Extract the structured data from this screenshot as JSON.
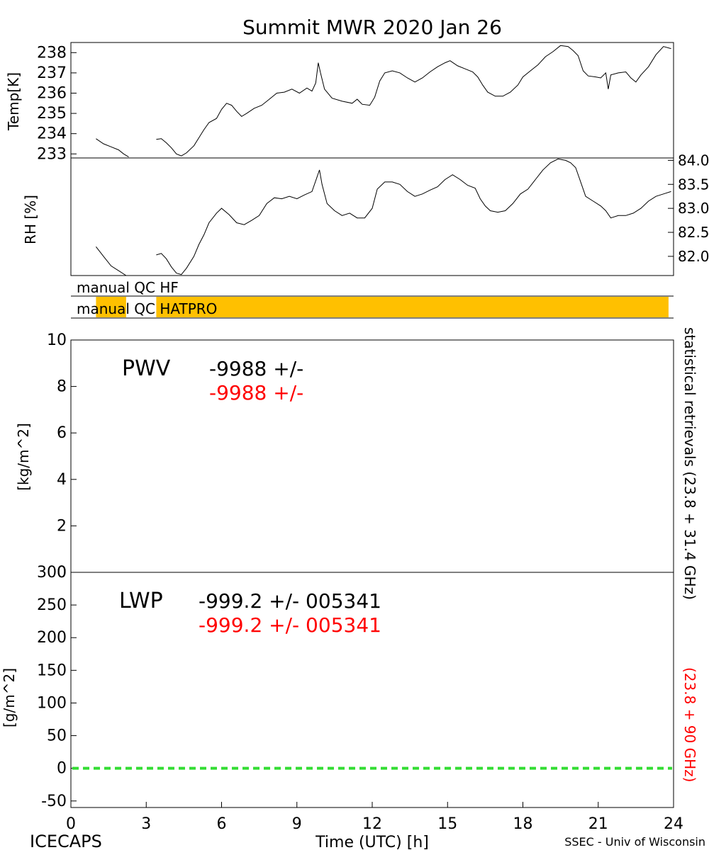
{
  "title": "Summit MWR 2020 Jan 26",
  "footer": {
    "left": "ICECAPS",
    "center": "Time (UTC) [h]",
    "right": "SSEC - Univ of Wisconsin"
  },
  "colors": {
    "black": "#000000",
    "red": "#ff0000",
    "orange": "#ffc000",
    "green": "#33dd33"
  },
  "chart_data": [
    {
      "type": "line",
      "name": "temperature",
      "ylabel": "Temp[K]",
      "ylim": [
        232.8,
        238.5
      ],
      "yticks": [
        "233",
        "234",
        "235",
        "236",
        "237",
        "238"
      ],
      "segments": [
        [
          [
            1.0,
            233.75
          ],
          [
            1.3,
            233.5
          ],
          [
            1.6,
            233.35
          ],
          [
            1.9,
            233.2
          ],
          [
            2.1,
            233.0
          ],
          [
            2.3,
            232.85
          ]
        ],
        [
          [
            3.4,
            233.72
          ],
          [
            3.6,
            233.75
          ],
          [
            3.8,
            233.55
          ],
          [
            4.0,
            233.3
          ],
          [
            4.2,
            233.0
          ],
          [
            4.4,
            232.9
          ],
          [
            4.6,
            233.05
          ],
          [
            4.9,
            233.4
          ],
          [
            5.1,
            233.8
          ],
          [
            5.3,
            234.2
          ],
          [
            5.5,
            234.55
          ],
          [
            5.8,
            234.75
          ],
          [
            6.0,
            235.2
          ],
          [
            6.2,
            235.5
          ],
          [
            6.4,
            235.4
          ],
          [
            6.6,
            235.1
          ],
          [
            6.8,
            234.85
          ],
          [
            7.0,
            235.0
          ],
          [
            7.3,
            235.25
          ],
          [
            7.6,
            235.4
          ],
          [
            7.9,
            235.7
          ],
          [
            8.2,
            236.0
          ],
          [
            8.5,
            236.05
          ],
          [
            8.8,
            236.2
          ],
          [
            9.1,
            236.0
          ],
          [
            9.4,
            236.25
          ],
          [
            9.6,
            236.1
          ],
          [
            9.75,
            236.5
          ],
          [
            9.85,
            237.5
          ],
          [
            9.95,
            236.95
          ],
          [
            10.1,
            236.2
          ],
          [
            10.4,
            235.75
          ],
          [
            10.8,
            235.6
          ],
          [
            11.2,
            235.5
          ],
          [
            11.4,
            235.7
          ],
          [
            11.6,
            235.45
          ],
          [
            11.9,
            235.4
          ],
          [
            12.1,
            235.8
          ],
          [
            12.3,
            236.6
          ],
          [
            12.5,
            237.0
          ],
          [
            12.8,
            237.1
          ],
          [
            13.1,
            237.0
          ],
          [
            13.4,
            236.75
          ],
          [
            13.7,
            236.55
          ],
          [
            14.0,
            236.75
          ],
          [
            14.3,
            237.05
          ],
          [
            14.6,
            237.3
          ],
          [
            14.9,
            237.5
          ],
          [
            15.1,
            237.6
          ],
          [
            15.4,
            237.35
          ],
          [
            15.7,
            237.2
          ],
          [
            16.0,
            237.05
          ],
          [
            16.2,
            236.8
          ],
          [
            16.4,
            236.4
          ],
          [
            16.6,
            236.05
          ],
          [
            16.9,
            235.85
          ],
          [
            17.2,
            235.85
          ],
          [
            17.5,
            236.05
          ],
          [
            17.8,
            236.4
          ],
          [
            18.0,
            236.8
          ],
          [
            18.3,
            237.1
          ],
          [
            18.6,
            237.4
          ],
          [
            18.9,
            237.8
          ],
          [
            19.2,
            238.05
          ],
          [
            19.5,
            238.35
          ],
          [
            19.8,
            238.3
          ],
          [
            20.0,
            238.1
          ],
          [
            20.2,
            237.85
          ],
          [
            20.4,
            237.1
          ],
          [
            20.6,
            236.85
          ],
          [
            20.9,
            236.8
          ],
          [
            21.1,
            236.75
          ],
          [
            21.3,
            237.0
          ],
          [
            21.4,
            236.2
          ],
          [
            21.5,
            236.9
          ],
          [
            21.8,
            237.0
          ],
          [
            22.1,
            237.05
          ],
          [
            22.3,
            236.75
          ],
          [
            22.5,
            236.55
          ],
          [
            22.7,
            236.9
          ],
          [
            23.0,
            237.3
          ],
          [
            23.3,
            237.9
          ],
          [
            23.6,
            238.3
          ],
          [
            23.9,
            238.2
          ]
        ]
      ]
    },
    {
      "type": "line",
      "name": "relative-humidity",
      "ylabel": "RH [%]",
      "ylim": [
        81.6,
        84.05
      ],
      "yticks": [
        "82.0",
        "82.5",
        "83.0",
        "83.5",
        "84.0"
      ],
      "segments": [
        [
          [
            1.0,
            82.2
          ],
          [
            1.3,
            82.0
          ],
          [
            1.6,
            81.8
          ],
          [
            1.9,
            81.7
          ],
          [
            2.2,
            81.6
          ]
        ],
        [
          [
            3.4,
            82.03
          ],
          [
            3.6,
            82.06
          ],
          [
            3.8,
            81.95
          ],
          [
            4.0,
            81.78
          ],
          [
            4.2,
            81.65
          ],
          [
            4.4,
            81.62
          ],
          [
            4.6,
            81.75
          ],
          [
            4.9,
            82.0
          ],
          [
            5.1,
            82.25
          ],
          [
            5.3,
            82.45
          ],
          [
            5.5,
            82.7
          ],
          [
            5.8,
            82.9
          ],
          [
            6.0,
            83.0
          ],
          [
            6.3,
            82.87
          ],
          [
            6.6,
            82.7
          ],
          [
            6.9,
            82.66
          ],
          [
            7.2,
            82.75
          ],
          [
            7.5,
            82.85
          ],
          [
            7.8,
            83.1
          ],
          [
            8.1,
            83.22
          ],
          [
            8.4,
            83.2
          ],
          [
            8.7,
            83.25
          ],
          [
            9.0,
            83.2
          ],
          [
            9.3,
            83.28
          ],
          [
            9.6,
            83.35
          ],
          [
            9.8,
            83.65
          ],
          [
            9.9,
            83.8
          ],
          [
            10.0,
            83.5
          ],
          [
            10.2,
            83.1
          ],
          [
            10.5,
            82.95
          ],
          [
            10.8,
            82.85
          ],
          [
            11.1,
            82.9
          ],
          [
            11.4,
            82.8
          ],
          [
            11.7,
            82.8
          ],
          [
            12.0,
            83.0
          ],
          [
            12.2,
            83.4
          ],
          [
            12.5,
            83.55
          ],
          [
            12.8,
            83.55
          ],
          [
            13.1,
            83.5
          ],
          [
            13.4,
            83.35
          ],
          [
            13.7,
            83.25
          ],
          [
            14.0,
            83.3
          ],
          [
            14.3,
            83.38
          ],
          [
            14.6,
            83.45
          ],
          [
            14.9,
            83.6
          ],
          [
            15.2,
            83.7
          ],
          [
            15.5,
            83.6
          ],
          [
            15.8,
            83.48
          ],
          [
            16.1,
            83.42
          ],
          [
            16.3,
            83.2
          ],
          [
            16.5,
            83.05
          ],
          [
            16.7,
            82.95
          ],
          [
            17.0,
            82.92
          ],
          [
            17.3,
            82.95
          ],
          [
            17.6,
            83.1
          ],
          [
            17.9,
            83.3
          ],
          [
            18.2,
            83.4
          ],
          [
            18.5,
            83.6
          ],
          [
            18.8,
            83.8
          ],
          [
            19.1,
            83.95
          ],
          [
            19.4,
            84.03
          ],
          [
            19.7,
            84.0
          ],
          [
            19.9,
            83.95
          ],
          [
            20.1,
            83.85
          ],
          [
            20.3,
            83.55
          ],
          [
            20.5,
            83.25
          ],
          [
            20.8,
            83.15
          ],
          [
            21.1,
            83.05
          ],
          [
            21.3,
            82.95
          ],
          [
            21.5,
            82.8
          ],
          [
            21.8,
            82.85
          ],
          [
            22.1,
            82.85
          ],
          [
            22.4,
            82.9
          ],
          [
            22.7,
            83.0
          ],
          [
            23.0,
            83.15
          ],
          [
            23.3,
            83.25
          ],
          [
            23.6,
            83.3
          ],
          [
            23.9,
            83.35
          ]
        ]
      ]
    },
    {
      "type": "table",
      "name": "qc-flags",
      "rows": [
        {
          "label": "manual QC HF",
          "bands": []
        },
        {
          "label": "manual QC HATPRO",
          "bands": [
            [
              1.0,
              2.2
            ],
            [
              3.4,
              23.8
            ]
          ]
        }
      ]
    },
    {
      "type": "line",
      "name": "pwv",
      "ylabel": "[kg/m^2]",
      "ylim": [
        0,
        10
      ],
      "yticks": [
        "0",
        "2",
        "4",
        "6",
        "8",
        "10"
      ],
      "right_label": "statistical retrievals (23.8 + 31.4 GHz)",
      "series": [],
      "annotation": {
        "name": "PWV",
        "line1": "-9988 +/-",
        "line2": "-9988 +/-"
      }
    },
    {
      "type": "line",
      "name": "lwp",
      "ylabel": "[g/m^2]",
      "ylim": [
        -60,
        300
      ],
      "yticks": [
        "-50",
        "0",
        "50",
        "100",
        "150",
        "200",
        "250",
        "300"
      ],
      "right_label": "(23.8 + 90 GHz)",
      "reference_line": 0,
      "annotation": {
        "name": "LWP",
        "line1": "-999.2 +/- 005341",
        "line2": "-999.2 +/- 005341"
      },
      "x": {
        "xlabel": "Time (UTC) [h]",
        "xlim": [
          0,
          24
        ],
        "xticks": [
          "0",
          "3",
          "6",
          "9",
          "12",
          "15",
          "18",
          "21",
          "24"
        ]
      }
    }
  ]
}
